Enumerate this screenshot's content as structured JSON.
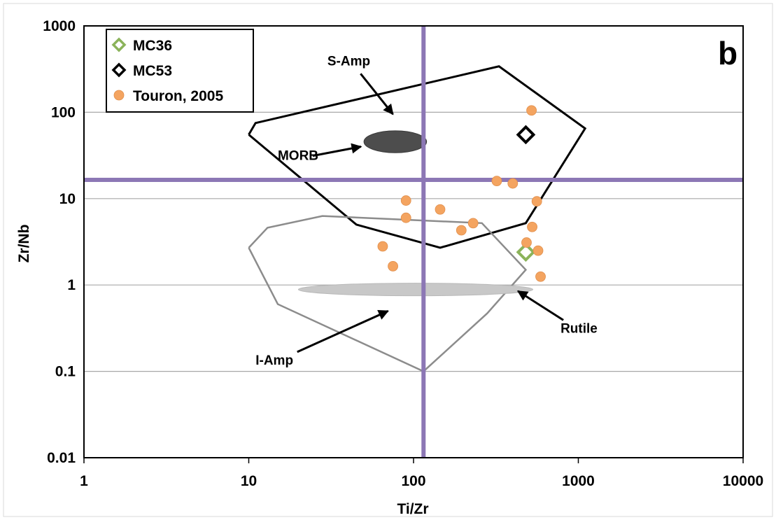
{
  "chart_data": {
    "type": "scatter",
    "panel_label": "b",
    "xlabel": "Ti/Zr",
    "ylabel": "Zr/Nb",
    "xscale": "log",
    "yscale": "log",
    "xlim": [
      1,
      10000
    ],
    "ylim": [
      0.01,
      1000
    ],
    "x_ticks": [
      "1",
      "10",
      "100",
      "1000",
      "10000"
    ],
    "y_ticks": [
      "0.01",
      "0.1",
      "1",
      "10",
      "100",
      "1000"
    ],
    "grid": "horizontal",
    "legend_position": "top-left",
    "reference_lines": {
      "vertical_x": 115,
      "horizontal_y": 16.5,
      "color": "#8c77b5"
    },
    "colors": {
      "MC36": "#8bb35a",
      "MC53": "#000000",
      "Touron": "#f4a460",
      "MORB": "#4d4d4d",
      "Rutile": "#c8c8c8"
    },
    "series": [
      {
        "name": "MC36",
        "marker": "diamond-open",
        "points": [
          [
            480,
            2.4
          ]
        ]
      },
      {
        "name": "MC53",
        "marker": "diamond-open",
        "points": [
          [
            480,
            55
          ]
        ]
      },
      {
        "name": "Touron, 2005",
        "marker": "circle",
        "points": [
          [
            520,
            105
          ],
          [
            320,
            16
          ],
          [
            400,
            15
          ],
          [
            90,
            9.5
          ],
          [
            90,
            6
          ],
          [
            145,
            7.5
          ],
          [
            195,
            4.3
          ],
          [
            230,
            5.2
          ],
          [
            560,
            9.3
          ],
          [
            525,
            4.7
          ],
          [
            485,
            3.1
          ],
          [
            65,
            2.8
          ],
          [
            570,
            2.5
          ],
          [
            75,
            1.65
          ],
          [
            590,
            1.25
          ]
        ]
      }
    ],
    "fields": [
      {
        "label": "S-Amp",
        "polygon": [
          [
            10,
            55
          ],
          [
            11,
            75
          ],
          [
            330,
            340
          ],
          [
            1100,
            65
          ],
          [
            480,
            5.2
          ],
          [
            145,
            2.7
          ],
          [
            45,
            5
          ],
          [
            10,
            55
          ]
        ]
      },
      {
        "label": "I-Amp",
        "polygon": [
          [
            10,
            2.7
          ],
          [
            13,
            4.6
          ],
          [
            28,
            6.3
          ],
          [
            260,
            5.2
          ],
          [
            480,
            1.5
          ],
          [
            280,
            0.47
          ],
          [
            115,
            0.1
          ],
          [
            15,
            0.6
          ],
          [
            10,
            2.7
          ]
        ]
      }
    ],
    "ellipses": [
      {
        "label": "MORB",
        "center": [
          78,
          45
        ],
        "x_range": [
          50,
          120
        ],
        "y_range": [
          34,
          61
        ]
      },
      {
        "label": "Rutile",
        "center": [
          130,
          0.9
        ],
        "x_range": [
          20,
          530
        ],
        "y_range": [
          0.75,
          1.05
        ]
      }
    ],
    "annotations": [
      {
        "text": "S-Amp",
        "x": 30,
        "y": 350,
        "arrow_to": [
          75,
          95
        ]
      },
      {
        "text": "MORB",
        "x": 15,
        "y": 28,
        "arrow_to": [
          48,
          40
        ]
      },
      {
        "text": "Rutile",
        "x": 780,
        "y": 0.28,
        "arrow_to": [
          430,
          0.85
        ]
      },
      {
        "text": "I-Amp",
        "x": 11,
        "y": 0.12,
        "arrow_to": [
          70,
          0.5
        ]
      }
    ]
  }
}
